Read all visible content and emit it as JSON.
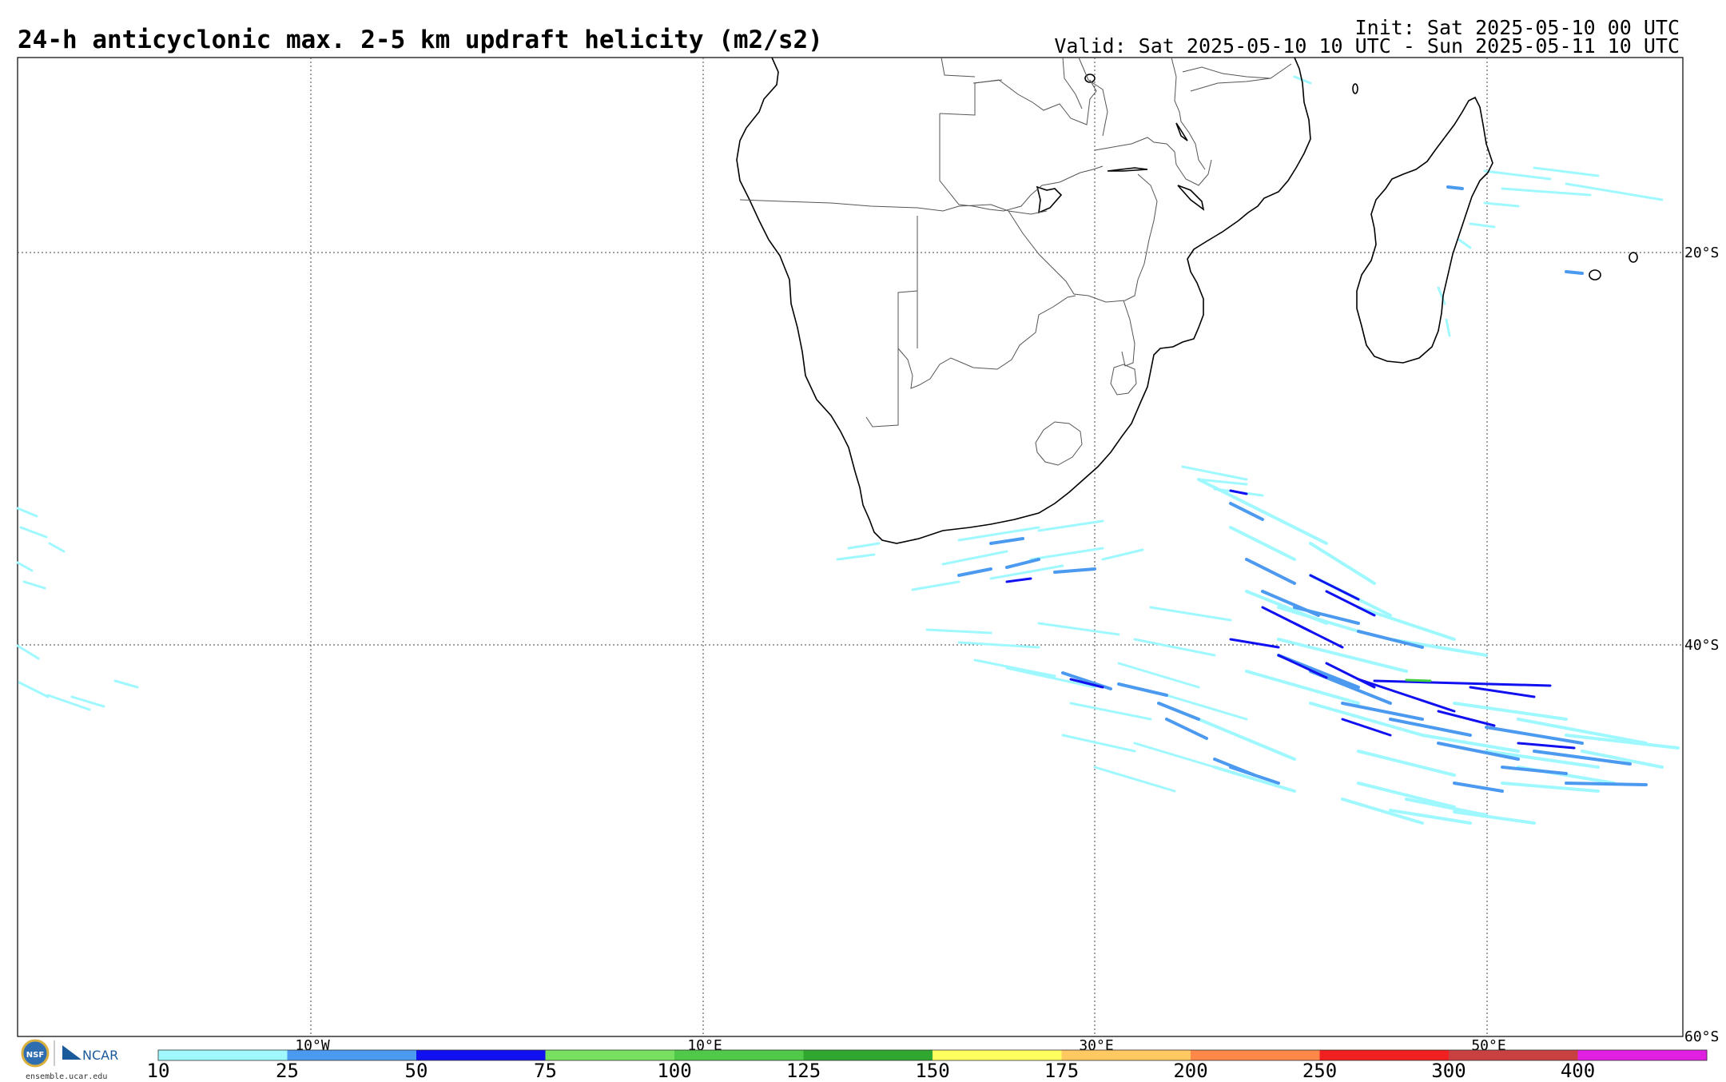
{
  "header": {
    "title": "24-h anticyclonic max. 2-5 km updraft helicity (m2/s2)",
    "init": "Init: Sat 2025-05-10 00 UTC",
    "valid": "Valid: Sat 2025-05-10 10 UTC - Sun 2025-05-11 10 UTC"
  },
  "map": {
    "lat_labels": [
      "20°S",
      "40°S",
      "60°S"
    ],
    "lon_labels": [
      "10°W",
      "10°E",
      "30°E",
      "50°E"
    ]
  },
  "colorbar": {
    "ticks": [
      "10",
      "25",
      "50",
      "75",
      "100",
      "125",
      "150",
      "175",
      "200",
      "250",
      "300",
      "400"
    ],
    "colors": [
      "#a0f8ff",
      "#4c9af0",
      "#1010f0",
      "#78e060",
      "#50c848",
      "#30a830",
      "#ffff60",
      "#ffc860",
      "#ff8848",
      "#f02020",
      "#c84040",
      "#e020e0"
    ]
  },
  "logos": {
    "nsf": "NSF",
    "ncar": "NCAR",
    "url": "ensemble.ucar.edu"
  },
  "palette": {
    "light_cyan": "#a0f8ff",
    "light_blue": "#4c9af0",
    "dark_blue": "#1010f0"
  }
}
